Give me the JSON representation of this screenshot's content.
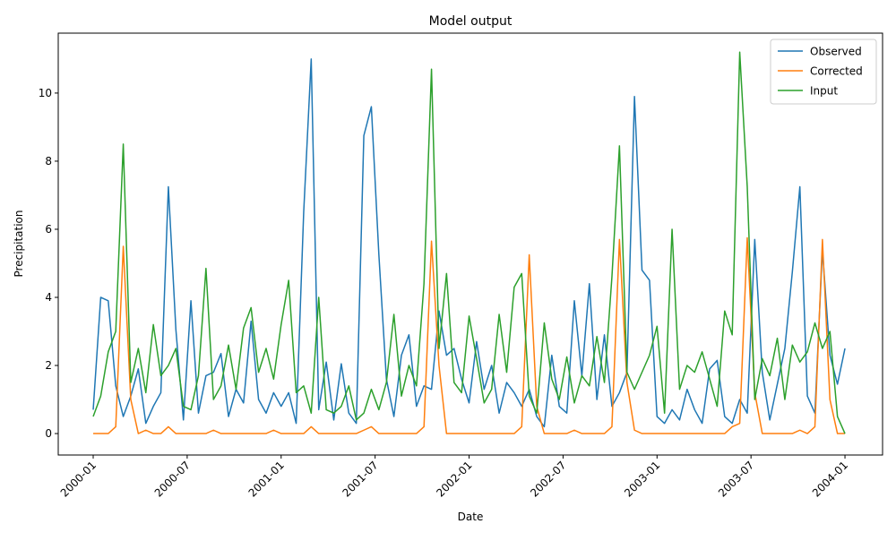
{
  "chart_data": {
    "type": "line",
    "title": "Model output",
    "x_label": "Date",
    "y_label": "Precipitation",
    "x": [
      2000.0,
      2000.04,
      2000.08,
      2000.12,
      2000.16,
      2000.2,
      2000.24,
      2000.28,
      2000.32,
      2000.36,
      2000.4,
      2000.44,
      2000.48,
      2000.52,
      2000.56,
      2000.6,
      2000.64,
      2000.68,
      2000.72,
      2000.76,
      2000.8,
      2000.84,
      2000.88,
      2000.92,
      2000.96,
      2001.0,
      2001.04,
      2001.08,
      2001.12,
      2001.16,
      2001.2,
      2001.24,
      2001.28,
      2001.32,
      2001.36,
      2001.4,
      2001.44,
      2001.48,
      2001.52,
      2001.56,
      2001.6,
      2001.64,
      2001.68,
      2001.72,
      2001.76,
      2001.8,
      2001.84,
      2001.88,
      2001.92,
      2001.96,
      2002.0,
      2002.04,
      2002.08,
      2002.12,
      2002.16,
      2002.2,
      2002.24,
      2002.28,
      2002.32,
      2002.36,
      2002.4,
      2002.44,
      2002.48,
      2002.52,
      2002.56,
      2002.6,
      2002.64,
      2002.68,
      2002.72,
      2002.76,
      2002.8,
      2002.84,
      2002.88,
      2002.92,
      2002.96,
      2003.0,
      2003.04,
      2003.08,
      2003.12,
      2003.16,
      2003.2,
      2003.24,
      2003.28,
      2003.32,
      2003.36,
      2003.4,
      2003.44,
      2003.48,
      2003.52,
      2003.56,
      2003.6,
      2003.64,
      2003.68,
      2003.72,
      2003.76,
      2003.8,
      2003.84,
      2003.88,
      2003.92,
      2003.96,
      2004.0
    ],
    "series": [
      {
        "name": "Observed",
        "color": "#1f77b4",
        "values": [
          0.7,
          4.0,
          3.9,
          1.4,
          0.5,
          1.1,
          1.9,
          0.3,
          0.8,
          1.2,
          7.25,
          3.05,
          0.4,
          3.9,
          0.6,
          1.7,
          1.8,
          2.35,
          0.5,
          1.3,
          0.9,
          3.3,
          1.0,
          0.6,
          1.2,
          0.8,
          1.2,
          0.3,
          6.5,
          11.0,
          0.7,
          2.1,
          0.4,
          2.05,
          0.6,
          0.3,
          8.75,
          9.6,
          5.25,
          1.6,
          0.5,
          2.3,
          2.9,
          0.8,
          1.4,
          1.3,
          3.6,
          2.3,
          2.5,
          1.6,
          0.9,
          2.7,
          1.3,
          2.0,
          0.6,
          1.5,
          1.2,
          0.8,
          1.3,
          0.5,
          0.2,
          2.3,
          0.8,
          0.6,
          3.9,
          1.7,
          4.4,
          1.0,
          2.9,
          0.8,
          1.2,
          1.8,
          9.9,
          4.8,
          4.5,
          0.5,
          0.3,
          0.7,
          0.4,
          1.3,
          0.7,
          0.3,
          1.9,
          2.15,
          0.5,
          0.3,
          1.0,
          0.6,
          5.7,
          1.8,
          0.4,
          1.45,
          2.5,
          4.75,
          7.25,
          1.1,
          0.6,
          5.4,
          2.3,
          1.45,
          2.5
        ]
      },
      {
        "name": "Corrected",
        "color": "#ff7f0e",
        "values": [
          0,
          0,
          0,
          0.2,
          5.5,
          1.0,
          0,
          0.1,
          0,
          0,
          0.2,
          0,
          0,
          0,
          0,
          0,
          0.1,
          0,
          0,
          0,
          0,
          0,
          0,
          0,
          0.1,
          0,
          0,
          0,
          0,
          0.2,
          0,
          0,
          0,
          0,
          0,
          0,
          0.1,
          0.2,
          0,
          0,
          0,
          0,
          0,
          0,
          0.2,
          5.65,
          2.0,
          0,
          0,
          0,
          0,
          0,
          0,
          0,
          0,
          0,
          0,
          0.2,
          5.25,
          0.8,
          0,
          0,
          0,
          0,
          0.1,
          0,
          0,
          0,
          0,
          0.2,
          5.7,
          1.5,
          0.1,
          0,
          0,
          0,
          0,
          0,
          0,
          0,
          0,
          0,
          0,
          0,
          0,
          0.2,
          0.3,
          5.75,
          1.2,
          0,
          0,
          0,
          0,
          0,
          0.1,
          0,
          0.2,
          5.7,
          1.0,
          0,
          0
        ]
      },
      {
        "name": "Input",
        "color": "#2ca02c",
        "values": [
          0.5,
          1.1,
          2.4,
          3.0,
          8.5,
          1.5,
          2.5,
          1.2,
          3.2,
          1.7,
          2.0,
          2.5,
          0.8,
          0.7,
          1.7,
          4.85,
          1.0,
          1.4,
          2.6,
          1.3,
          3.1,
          3.7,
          1.8,
          2.5,
          1.6,
          3.2,
          4.5,
          1.2,
          1.4,
          0.6,
          4.0,
          0.7,
          0.6,
          0.8,
          1.4,
          0.4,
          0.6,
          1.3,
          0.7,
          1.5,
          3.5,
          1.1,
          2.0,
          1.4,
          4.4,
          10.7,
          2.5,
          4.7,
          1.5,
          1.2,
          3.45,
          2.2,
          0.9,
          1.3,
          3.5,
          1.8,
          4.3,
          4.7,
          1.1,
          0.6,
          3.25,
          1.6,
          1.0,
          2.25,
          0.9,
          1.7,
          1.4,
          2.85,
          1.5,
          4.6,
          8.45,
          1.8,
          1.3,
          1.8,
          2.3,
          3.15,
          0.6,
          6.0,
          1.3,
          2.0,
          1.8,
          2.4,
          1.6,
          0.8,
          3.6,
          2.9,
          11.2,
          7.25,
          1.0,
          2.2,
          1.7,
          2.8,
          1.0,
          2.6,
          2.1,
          2.4,
          3.25,
          2.5,
          3.0,
          0.5,
          0.0
        ]
      }
    ],
    "xlim": [
      1999.814,
      2004.2
    ],
    "xticks": [
      {
        "value": 2000.0,
        "label": "2000-01"
      },
      {
        "value": 2000.5,
        "label": "2000-07"
      },
      {
        "value": 2001.0,
        "label": "2001-01"
      },
      {
        "value": 2001.5,
        "label": "2001-07"
      },
      {
        "value": 2002.0,
        "label": "2002-01"
      },
      {
        "value": 2002.5,
        "label": "2002-07"
      },
      {
        "value": 2003.0,
        "label": "2003-01"
      },
      {
        "value": 2003.5,
        "label": "2003-07"
      },
      {
        "value": 2004.0,
        "label": "2004-01"
      }
    ],
    "ylim": [
      -0.63,
      11.76
    ],
    "yticks": [
      0,
      2,
      4,
      6,
      8,
      10
    ],
    "legend": "upper right"
  }
}
